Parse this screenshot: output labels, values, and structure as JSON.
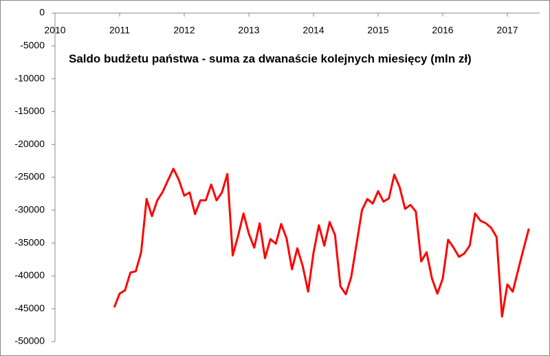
{
  "chart_data": {
    "type": "line",
    "title": "Saldo budżetu państwa - suma za dwanaście kolejnych miesięcy (mln zł)",
    "x": [
      2010.917,
      2011.0,
      2011.083,
      2011.167,
      2011.25,
      2011.333,
      2011.417,
      2011.5,
      2011.583,
      2011.667,
      2011.75,
      2011.833,
      2011.917,
      2012.0,
      2012.083,
      2012.167,
      2012.25,
      2012.333,
      2012.417,
      2012.5,
      2012.583,
      2012.667,
      2012.75,
      2012.833,
      2012.917,
      2013.0,
      2013.083,
      2013.167,
      2013.25,
      2013.333,
      2013.417,
      2013.5,
      2013.583,
      2013.667,
      2013.75,
      2013.833,
      2013.917,
      2014.0,
      2014.083,
      2014.167,
      2014.25,
      2014.333,
      2014.417,
      2014.5,
      2014.583,
      2014.667,
      2014.75,
      2014.833,
      2014.917,
      2015.0,
      2015.083,
      2015.167,
      2015.25,
      2015.333,
      2015.417,
      2015.5,
      2015.583,
      2015.667,
      2015.75,
      2015.833,
      2015.917,
      2016.0,
      2016.083,
      2016.167,
      2016.25,
      2016.333,
      2016.417,
      2016.5,
      2016.583,
      2016.667,
      2016.75,
      2016.833,
      2016.917,
      2017.0,
      2017.083,
      2017.167,
      2017.25,
      2017.333
    ],
    "series": [
      {
        "color": "#ff0000",
        "values": [
          -44800,
          -42700,
          -42200,
          -39500,
          -39300,
          -36400,
          -28300,
          -30900,
          -28500,
          -27200,
          -25400,
          -23700,
          -25400,
          -27800,
          -27300,
          -30600,
          -28500,
          -28500,
          -26100,
          -28500,
          -27300,
          -24500,
          -36900,
          -33900,
          -30500,
          -33600,
          -35700,
          -32000,
          -37300,
          -34400,
          -35100,
          -32100,
          -34300,
          -39000,
          -35800,
          -38500,
          -42400,
          -36500,
          -32300,
          -35400,
          -31800,
          -33800,
          -41600,
          -42800,
          -40200,
          -35100,
          -30000,
          -28300,
          -29000,
          -27100,
          -28700,
          -28200,
          -24600,
          -26500,
          -29800,
          -29200,
          -30200,
          -37800,
          -36400,
          -40400,
          -42700,
          -40400,
          -34500,
          -35700,
          -37100,
          -36600,
          -35400,
          -30500,
          -31600,
          -32000,
          -32700,
          -34100,
          -46200,
          -41300,
          -42400,
          -39100,
          -35900,
          -32800
        ]
      }
    ],
    "xlim": [
      2010,
      2017.5
    ],
    "xticks": [
      2010,
      2011,
      2012,
      2013,
      2014,
      2015,
      2016,
      2017
    ],
    "ylim": [
      -50000,
      0
    ],
    "yticks": [
      0,
      -5000,
      -10000,
      -15000,
      -20000,
      -25000,
      -30000,
      -35000,
      -40000,
      -45000,
      -50000
    ],
    "grid": false
  }
}
